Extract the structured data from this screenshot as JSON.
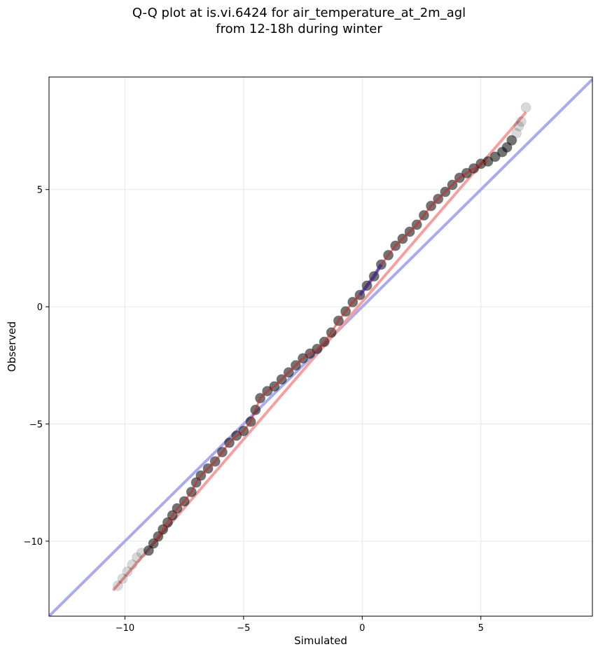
{
  "chart_data": {
    "type": "scatter",
    "title_line1": "Q-Q plot at is.vi.6424 for air_temperature_at_2m_agl",
    "title_line2": "from 12-18h during winter",
    "xlabel": "Simulated",
    "ylabel": "Observed",
    "xlim": [
      -13.2,
      9.7
    ],
    "ylim": [
      -13.2,
      9.8
    ],
    "xticks": [
      -10,
      -5,
      0,
      5
    ],
    "yticks": [
      -10,
      -5,
      0,
      5
    ],
    "xtick_labels": [
      "−10",
      "−5",
      "0",
      "5"
    ],
    "ytick_labels": [
      "−10",
      "−5",
      "0",
      "5"
    ],
    "grid": true,
    "reference_line": {
      "color": "#aaaaee",
      "x": [
        -13.2,
        9.7
      ],
      "y": [
        -13.2,
        9.7
      ]
    },
    "fit_line": {
      "color": "#f4a0a0",
      "x": [
        -10.5,
        6.9
      ],
      "y": [
        -12.1,
        8.3
      ]
    },
    "qq_points": {
      "x": [
        -10.3,
        -10.1,
        -9.9,
        -9.7,
        -9.5,
        -9.3,
        -9.0,
        -8.8,
        -8.6,
        -8.4,
        -8.2,
        -8.0,
        -7.8,
        -7.5,
        -7.2,
        -7.0,
        -6.8,
        -6.5,
        -6.2,
        -5.9,
        -5.6,
        -5.3,
        -5.0,
        -4.7,
        -4.5,
        -4.3,
        -4.0,
        -3.7,
        -3.4,
        -3.1,
        -2.8,
        -2.5,
        -2.2,
        -1.9,
        -1.6,
        -1.3,
        -1.0,
        -0.7,
        -0.4,
        -0.1,
        0.2,
        0.5,
        0.8,
        1.1,
        1.4,
        1.7,
        2.0,
        2.3,
        2.6,
        2.9,
        3.2,
        3.5,
        3.8,
        4.1,
        4.4,
        4.7,
        5.0,
        5.3,
        5.6,
        5.9,
        6.1,
        6.3,
        6.5,
        6.6,
        6.7,
        6.9
      ],
      "y": [
        -11.9,
        -11.6,
        -11.3,
        -11.0,
        -10.7,
        -10.5,
        -10.4,
        -10.1,
        -9.8,
        -9.5,
        -9.2,
        -8.9,
        -8.6,
        -8.3,
        -7.9,
        -7.5,
        -7.2,
        -6.9,
        -6.6,
        -6.2,
        -5.8,
        -5.5,
        -5.3,
        -4.9,
        -4.4,
        -3.9,
        -3.6,
        -3.4,
        -3.1,
        -2.8,
        -2.5,
        -2.2,
        -2.0,
        -1.8,
        -1.5,
        -1.1,
        -0.6,
        -0.2,
        0.2,
        0.5,
        0.9,
        1.3,
        1.8,
        2.2,
        2.6,
        2.9,
        3.2,
        3.5,
        3.9,
        4.3,
        4.6,
        4.9,
        5.2,
        5.5,
        5.7,
        5.9,
        6.1,
        6.2,
        6.4,
        6.6,
        6.8,
        7.1,
        7.4,
        7.7,
        7.9,
        8.5
      ],
      "color": "#000000",
      "alpha_core": 0.55,
      "alpha_tail": 0.15
    },
    "highlight": [
      {
        "color": "#cc2222",
        "x_range": [
          -8.8,
          5.5
        ]
      },
      {
        "color": "#1a1aa0",
        "x_range": [
          -0.3,
          1.0
        ]
      }
    ]
  }
}
